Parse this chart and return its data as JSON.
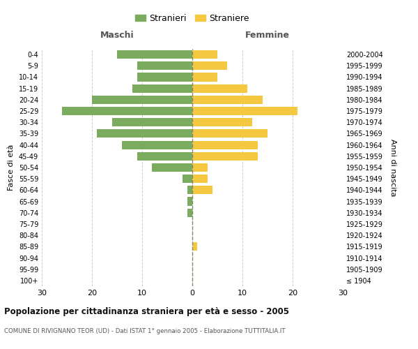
{
  "age_groups": [
    "100+",
    "95-99",
    "90-94",
    "85-89",
    "80-84",
    "75-79",
    "70-74",
    "65-69",
    "60-64",
    "55-59",
    "50-54",
    "45-49",
    "40-44",
    "35-39",
    "30-34",
    "25-29",
    "20-24",
    "15-19",
    "10-14",
    "5-9",
    "0-4"
  ],
  "birth_years": [
    "≤ 1904",
    "1905-1909",
    "1910-1914",
    "1915-1919",
    "1920-1924",
    "1925-1929",
    "1930-1934",
    "1935-1939",
    "1940-1944",
    "1945-1949",
    "1950-1954",
    "1955-1959",
    "1960-1964",
    "1965-1969",
    "1970-1974",
    "1975-1979",
    "1980-1984",
    "1985-1989",
    "1990-1994",
    "1995-1999",
    "2000-2004"
  ],
  "maschi": [
    0,
    0,
    0,
    0,
    0,
    0,
    1,
    1,
    1,
    2,
    8,
    11,
    14,
    19,
    16,
    26,
    20,
    12,
    11,
    11,
    15
  ],
  "femmine": [
    0,
    0,
    0,
    1,
    0,
    0,
    0,
    0,
    4,
    3,
    3,
    13,
    13,
    15,
    12,
    21,
    14,
    11,
    5,
    7,
    5
  ],
  "male_color": "#7aab5e",
  "female_color": "#f5c842",
  "grid_color": "#cccccc",
  "center_line_color": "#888866",
  "title": "Popolazione per cittadinanza straniera per età e sesso - 2005",
  "subtitle": "COMUNE DI RIVIGNANO TEOR (UD) - Dati ISTAT 1° gennaio 2005 - Elaborazione TUTTITALIA.IT",
  "left_header": "Maschi",
  "right_header": "Femmine",
  "left_ylabel": "Fasce di età",
  "right_ylabel": "Anni di nascita",
  "xlim": 30,
  "legend_stranieri": "Stranieri",
  "legend_straniere": "Straniere",
  "background_color": "#ffffff"
}
